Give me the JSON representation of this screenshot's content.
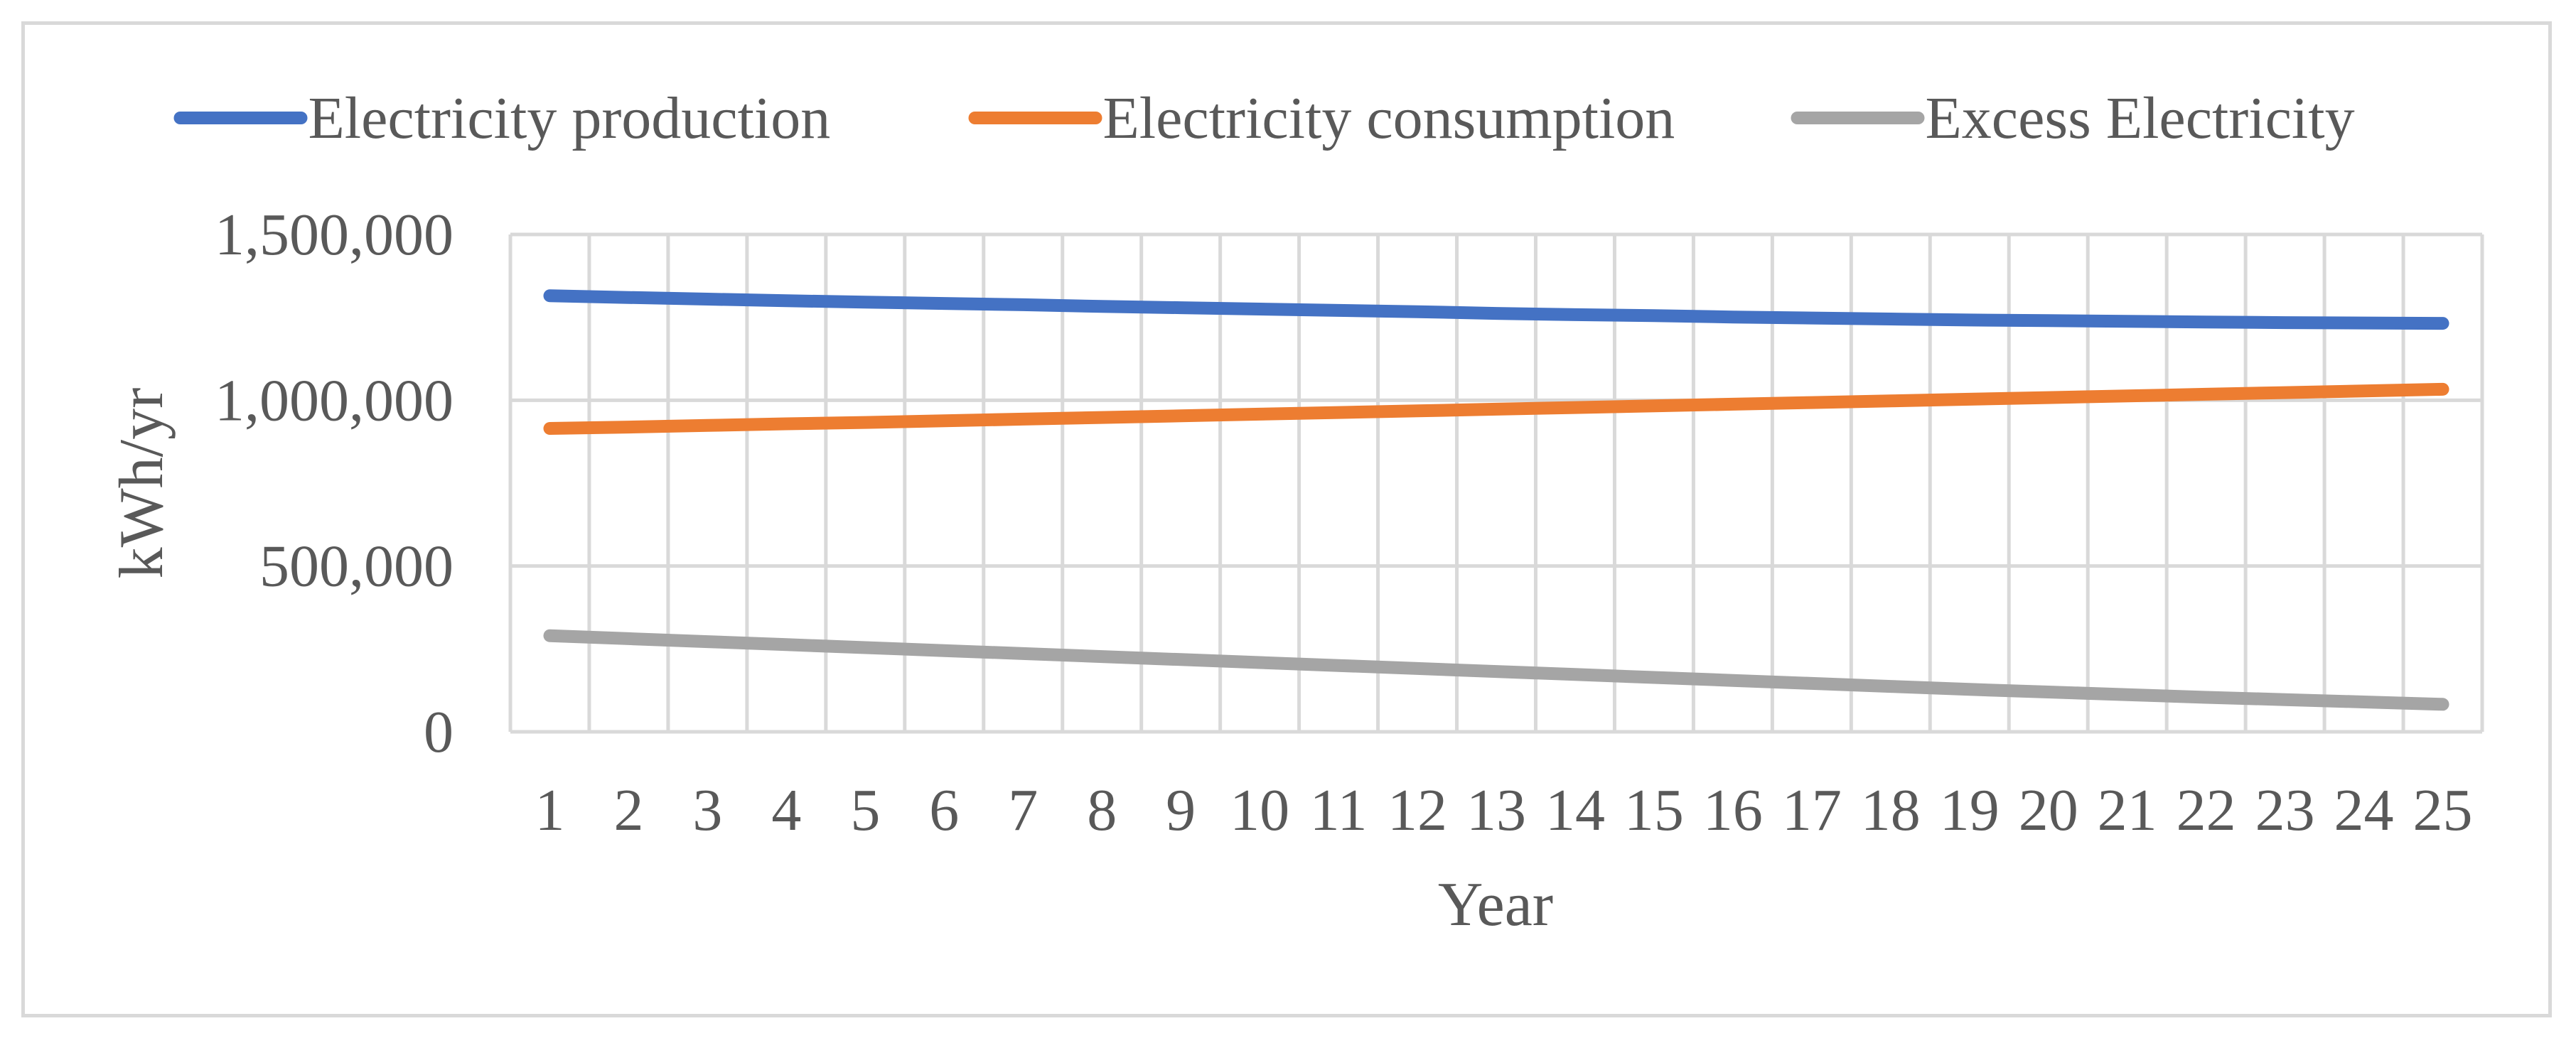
{
  "chart_data": {
    "type": "line",
    "title": "",
    "xlabel": "Year",
    "ylabel": "kWh/yr",
    "categories": [
      "1",
      "2",
      "3",
      "4",
      "5",
      "6",
      "7",
      "8",
      "9",
      "10",
      "11",
      "12",
      "13",
      "14",
      "15",
      "16",
      "17",
      "18",
      "19",
      "20",
      "21",
      "22",
      "23",
      "24",
      "25"
    ],
    "ylim": [
      0,
      1500000
    ],
    "yticks": [
      0,
      500000,
      1000000,
      1500000
    ],
    "ytick_labels": [
      "0",
      "500,000",
      "1,000,000",
      "1,500,000"
    ],
    "grid": true,
    "legend_position": "top",
    "series": [
      {
        "name": "Electricity production",
        "color": "#4472c4",
        "values": [
          1315000,
          1310000,
          1305000,
          1300000,
          1296000,
          1292000,
          1288000,
          1283000,
          1279000,
          1275000,
          1271000,
          1267000,
          1262000,
          1258000,
          1255000,
          1251000,
          1248000,
          1245000,
          1242000,
          1240000,
          1238000,
          1236000,
          1234000,
          1233000,
          1232000
        ]
      },
      {
        "name": "Electricity consumption",
        "color": "#ed7d31",
        "values": [
          915000,
          919000,
          924000,
          929000,
          933000,
          938000,
          943000,
          948000,
          953000,
          958000,
          963000,
          968000,
          973000,
          978000,
          983000,
          988000,
          993000,
          998000,
          1003000,
          1008000,
          1013000,
          1018000,
          1023000,
          1028000,
          1033000
        ]
      },
      {
        "name": "Excess Electricity",
        "color": "#a5a5a5",
        "values": [
          290000,
          281000,
          272000,
          263000,
          254000,
          245000,
          236000,
          227000,
          218000,
          209000,
          200000,
          191000,
          182000,
          173000,
          164000,
          155000,
          146000,
          137000,
          128000,
          120000,
          112000,
          104000,
          97000,
          90000,
          83000
        ]
      }
    ]
  }
}
